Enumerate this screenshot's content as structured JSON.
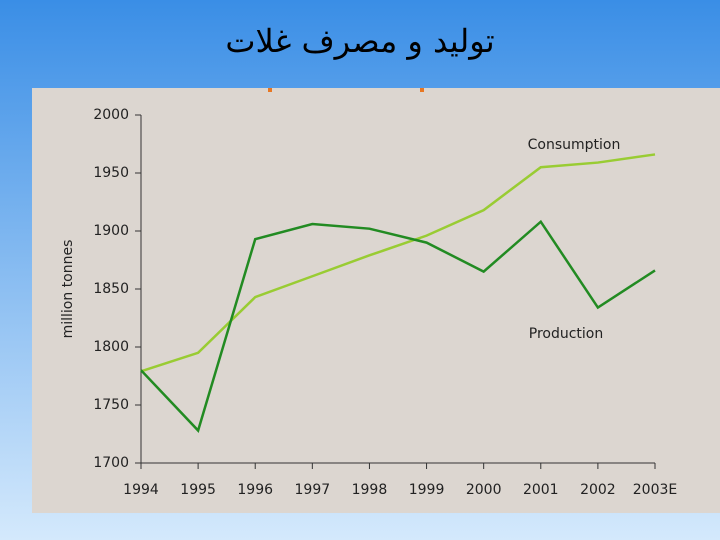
{
  "title": "تولید و مصرف غلات",
  "chart_data": {
    "type": "line",
    "y_label": "million tonnes",
    "categories": [
      "1994",
      "1995",
      "1996",
      "1997",
      "1998",
      "1999",
      "2000",
      "2001",
      "2002",
      "2003E"
    ],
    "series": [
      {
        "name": "Consumption",
        "color": "#99cc33",
        "values": [
          1779,
          1795,
          1843,
          1861,
          1879,
          1896,
          1918,
          1955,
          1959,
          1966
        ]
      },
      {
        "name": "Production",
        "color": "#228b22",
        "values": [
          1780,
          1728,
          1893,
          1906,
          1902,
          1890,
          1865,
          1908,
          1834,
          1866
        ]
      }
    ],
    "ylim": [
      1700,
      2000
    ],
    "yticks": [
      1700,
      1750,
      1800,
      1850,
      1900,
      1950,
      2000
    ],
    "grid": false
  }
}
